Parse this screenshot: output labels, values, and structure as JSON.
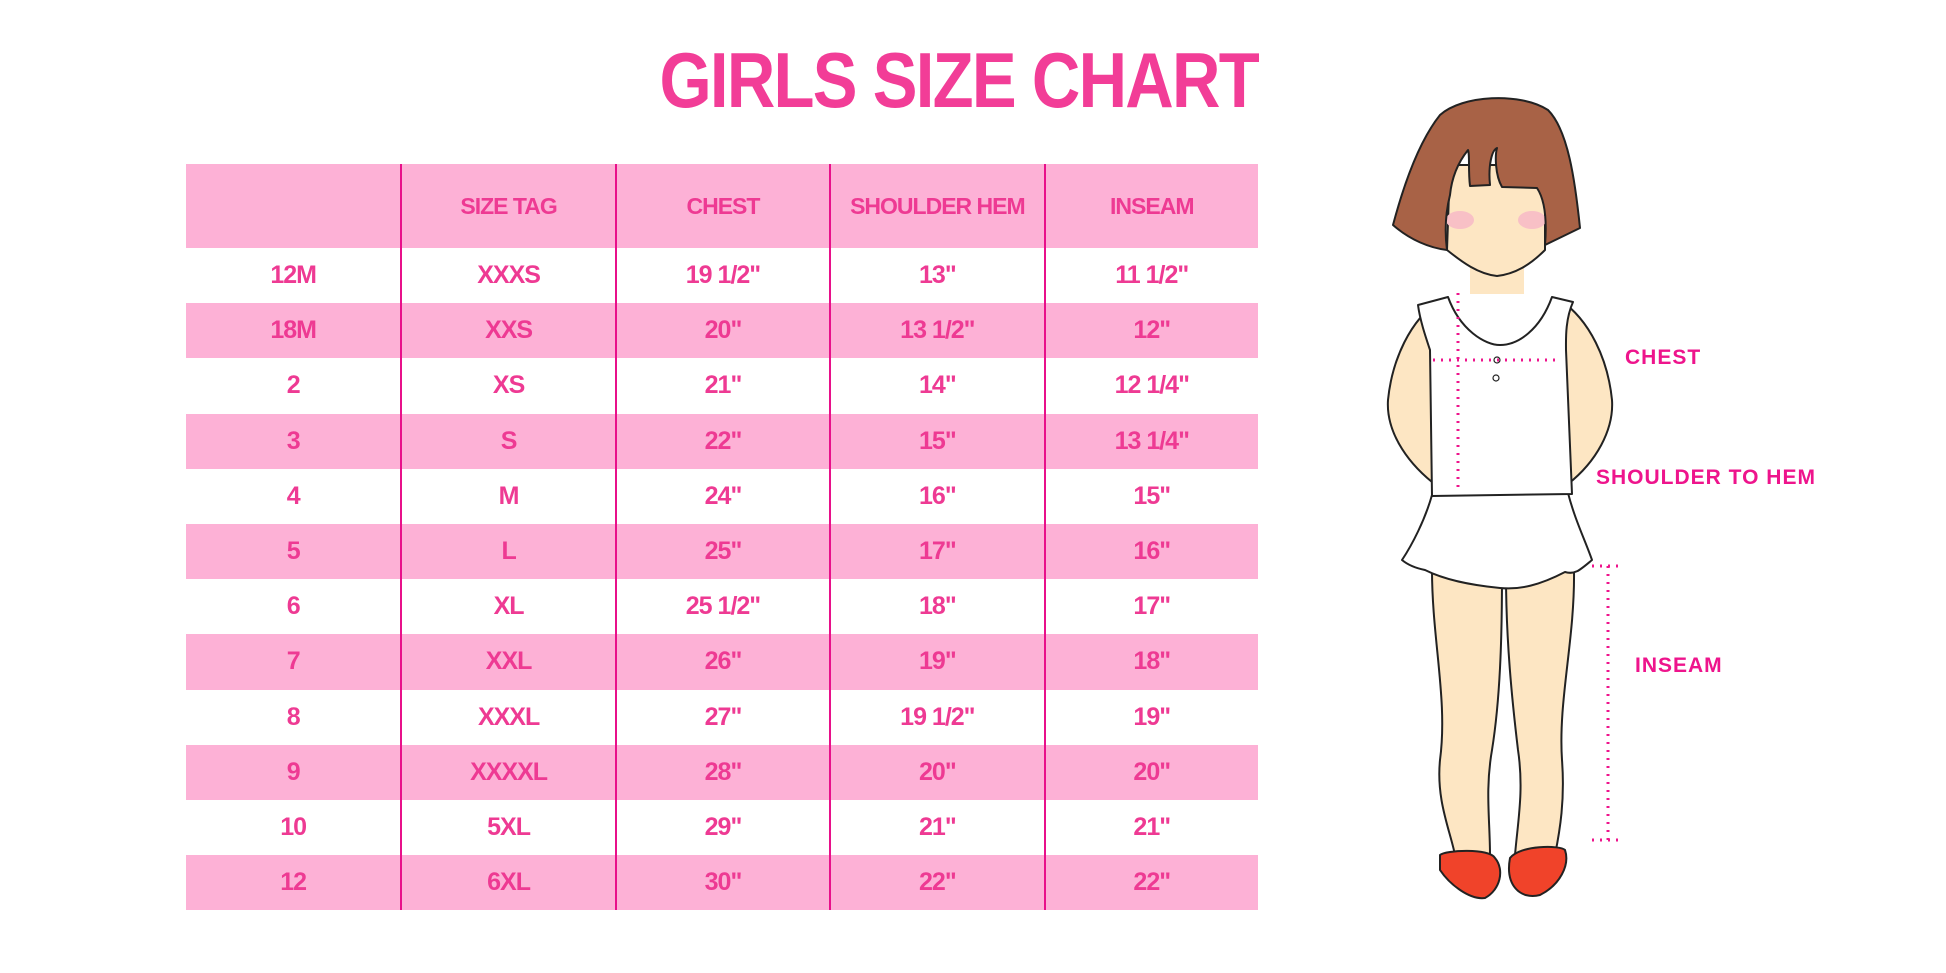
{
  "title": "GIRLS SIZE CHART",
  "table": {
    "headers": [
      "",
      "SIZE TAG",
      "CHEST",
      "SHOULDER HEM",
      "INSEAM"
    ],
    "rows": [
      [
        "12M",
        "XXXS",
        "19 1/2\"",
        "13\"",
        "11 1/2\""
      ],
      [
        "18M",
        "XXS",
        "20\"",
        "13 1/2\"",
        "12\""
      ],
      [
        "2",
        "XS",
        "21\"",
        "14\"",
        "12 1/4\""
      ],
      [
        "3",
        "S",
        "22\"",
        "15\"",
        "13 1/4\""
      ],
      [
        "4",
        "M",
        "24\"",
        "16\"",
        "15\""
      ],
      [
        "5",
        "L",
        "25\"",
        "17\"",
        "16\""
      ],
      [
        "6",
        "XL",
        "25 1/2\"",
        "18\"",
        "17\""
      ],
      [
        "7",
        "XXL",
        "26\"",
        "19\"",
        "18\""
      ],
      [
        "8",
        "XXXL",
        "27\"",
        "19 1/2\"",
        "19\""
      ],
      [
        "9",
        "XXXXL",
        "28\"",
        "20\"",
        "20\""
      ],
      [
        "10",
        "5XL",
        "29\"",
        "21\"",
        "21\""
      ],
      [
        "12",
        "6XL",
        "30\"",
        "22\"",
        "22\""
      ]
    ]
  },
  "figure": {
    "labels": {
      "chest": "CHEST",
      "shoulder_to_hem": "SHOULDER TO HEM",
      "inseam": "INSEAM"
    }
  },
  "colors": {
    "accent": "#ee3a93",
    "row_pink": "#fdb1d6",
    "divider": "#e8108a",
    "measure": "#ee148c"
  }
}
